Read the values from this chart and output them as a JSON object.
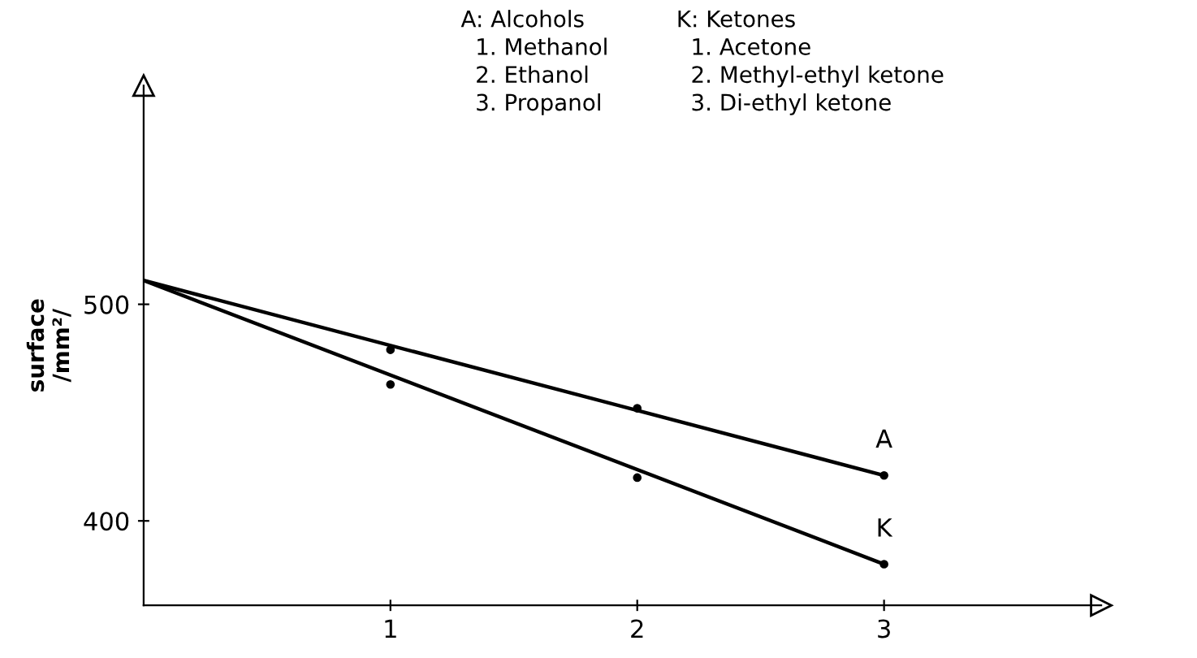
{
  "chart_data": {
    "type": "line",
    "ylabel": "surface\n/mm²/",
    "xlim": [
      0,
      3.88
    ],
    "xticks": [
      1,
      2,
      3
    ],
    "ylim": [
      361,
      601
    ],
    "yticks": [
      400,
      500
    ],
    "grid": false,
    "line_style": "solid",
    "series": [
      {
        "name": "A",
        "color": "#000000",
        "x": [
          0,
          3
        ],
        "values": [
          511,
          421
        ]
      },
      {
        "name": "K",
        "color": "#000000",
        "x": [
          0,
          3
        ],
        "values": [
          511,
          380
        ]
      },
      {
        "type": "scatter",
        "marker": "circle",
        "color": "#000000",
        "x": [
          1,
          2,
          3
        ],
        "values": [
          479,
          452,
          421
        ]
      },
      {
        "type": "scatter",
        "marker": "circle",
        "color": "#000000",
        "x": [
          1,
          2,
          3
        ],
        "values": [
          463,
          420,
          380
        ]
      }
    ],
    "annotations": [
      "A: Alcohols\n  1. Methanol\n  2. Ethanol\n  3. Propanol",
      "K: Ketones\n  1. Acetone\n  2. Methyl-ethyl ketone\n  3. Di-ethyl ketone"
    ]
  }
}
